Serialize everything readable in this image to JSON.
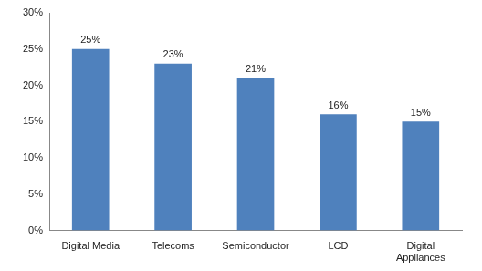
{
  "chart_data": {
    "type": "bar",
    "categories": [
      "Digital Media",
      "Telecoms",
      "Semiconductor",
      "LCD",
      "Digital Appliances"
    ],
    "values": [
      25,
      23,
      21,
      16,
      15
    ],
    "value_labels": [
      "25%",
      "23%",
      "21%",
      "16%",
      "15%"
    ],
    "color": "#4f81bd",
    "ylim": [
      0,
      30
    ],
    "yticks": [
      {
        "value": 0,
        "label": "0%"
      },
      {
        "value": 5,
        "label": "5%"
      },
      {
        "value": 10,
        "label": "10%"
      },
      {
        "value": 15,
        "label": "15%"
      },
      {
        "value": 20,
        "label": "20%"
      },
      {
        "value": 25,
        "label": "25%"
      },
      {
        "value": 30,
        "label": "30%"
      }
    ],
    "grid": false,
    "data_labels": true
  }
}
